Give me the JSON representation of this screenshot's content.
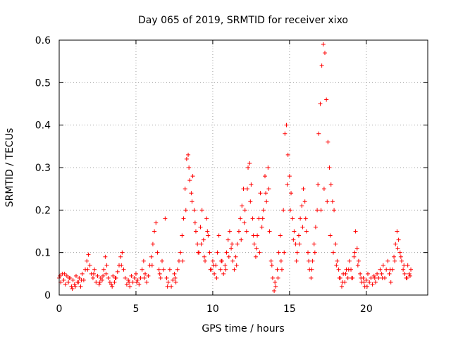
{
  "chart_data": {
    "type": "scatter",
    "title": "Day 065 of 2019, SRMTID for receiver xixo",
    "xlabel": "GPS time / hours",
    "ylabel": "SRMTID / TECUs",
    "xlim": [
      0,
      24
    ],
    "ylim": [
      0,
      0.6
    ],
    "x_ticks": [
      0,
      5,
      10,
      15,
      20
    ],
    "y_ticks": [
      0,
      0.1,
      0.2,
      0.3,
      0.4,
      0.5,
      0.6
    ],
    "x_tick_labels": [
      "0",
      "5",
      "10",
      "15",
      "20"
    ],
    "y_tick_labels": [
      "0",
      "0.1",
      "0.2",
      "0.3",
      "0.4",
      "0.5",
      "0.6"
    ],
    "grid": true,
    "marker": "+",
    "series": [
      {
        "name": "SRMTID",
        "color": "#ff0000",
        "points": [
          [
            0.0,
            0.04
          ],
          [
            0.1,
            0.03
          ],
          [
            0.2,
            0.05
          ],
          [
            0.3,
            0.035
          ],
          [
            0.4,
            0.025
          ],
          [
            0.5,
            0.045
          ],
          [
            0.6,
            0.03
          ],
          [
            0.7,
            0.04
          ],
          [
            0.8,
            0.02
          ],
          [
            0.9,
            0.035
          ],
          [
            1.0,
            0.025
          ],
          [
            1.1,
            0.045
          ],
          [
            1.2,
            0.03
          ],
          [
            1.3,
            0.04
          ],
          [
            1.4,
            0.02
          ],
          [
            1.5,
            0.05
          ],
          [
            1.6,
            0.035
          ],
          [
            1.7,
            0.06
          ],
          [
            1.8,
            0.08
          ],
          [
            1.9,
            0.095
          ],
          [
            2.0,
            0.07
          ],
          [
            2.1,
            0.05
          ],
          [
            2.2,
            0.04
          ],
          [
            2.3,
            0.06
          ],
          [
            2.4,
            0.03
          ],
          [
            2.5,
            0.045
          ],
          [
            2.6,
            0.025
          ],
          [
            2.7,
            0.04
          ],
          [
            2.8,
            0.035
          ],
          [
            2.9,
            0.06
          ],
          [
            3.0,
            0.09
          ],
          [
            3.1,
            0.07
          ],
          [
            3.2,
            0.04
          ],
          [
            3.3,
            0.03
          ],
          [
            3.4,
            0.025
          ],
          [
            3.5,
            0.045
          ],
          [
            3.6,
            0.03
          ],
          [
            3.7,
            0.04
          ],
          [
            3.8,
            0.055
          ],
          [
            3.9,
            0.07
          ],
          [
            4.0,
            0.09
          ],
          [
            4.1,
            0.1
          ],
          [
            4.2,
            0.06
          ],
          [
            4.3,
            0.04
          ],
          [
            4.4,
            0.025
          ],
          [
            4.5,
            0.035
          ],
          [
            4.6,
            0.02
          ],
          [
            4.7,
            0.045
          ],
          [
            4.8,
            0.03
          ],
          [
            4.9,
            0.04
          ],
          [
            5.0,
            0.05
          ],
          [
            5.1,
            0.035
          ],
          [
            5.2,
            0.025
          ],
          [
            5.3,
            0.04
          ],
          [
            5.4,
            0.06
          ],
          [
            5.5,
            0.08
          ],
          [
            5.6,
            0.05
          ],
          [
            5.7,
            0.03
          ],
          [
            5.8,
            0.045
          ],
          [
            5.9,
            0.07
          ],
          [
            6.0,
            0.09
          ],
          [
            6.1,
            0.12
          ],
          [
            6.2,
            0.15
          ],
          [
            6.3,
            0.17
          ],
          [
            6.4,
            0.1
          ],
          [
            6.5,
            0.06
          ],
          [
            6.6,
            0.04
          ],
          [
            6.7,
            0.08
          ],
          [
            6.8,
            0.06
          ],
          [
            6.9,
            0.18
          ],
          [
            7.0,
            0.04
          ],
          [
            7.1,
            0.03
          ],
          [
            7.2,
            0.06
          ],
          [
            7.3,
            0.02
          ],
          [
            7.4,
            0.035
          ],
          [
            7.5,
            0.05
          ],
          [
            7.6,
            0.03
          ],
          [
            7.7,
            0.06
          ],
          [
            7.8,
            0.08
          ],
          [
            7.9,
            0.1
          ],
          [
            8.0,
            0.14
          ],
          [
            8.1,
            0.18
          ],
          [
            8.2,
            0.25
          ],
          [
            8.3,
            0.32
          ],
          [
            8.4,
            0.33
          ],
          [
            8.5,
            0.27
          ],
          [
            8.6,
            0.24
          ],
          [
            8.7,
            0.28
          ],
          [
            8.8,
            0.2
          ],
          [
            8.9,
            0.15
          ],
          [
            9.0,
            0.12
          ],
          [
            9.1,
            0.1
          ],
          [
            9.2,
            0.16
          ],
          [
            9.3,
            0.2
          ],
          [
            9.4,
            0.13
          ],
          [
            9.5,
            0.08
          ],
          [
            9.6,
            0.18
          ],
          [
            9.7,
            0.14
          ],
          [
            9.8,
            0.1
          ],
          [
            9.9,
            0.06
          ],
          [
            10.0,
            0.08
          ],
          [
            10.1,
            0.05
          ],
          [
            10.2,
            0.07
          ],
          [
            10.3,
            0.1
          ],
          [
            10.4,
            0.14
          ],
          [
            10.5,
            0.06
          ],
          [
            10.6,
            0.08
          ],
          [
            10.7,
            0.05
          ],
          [
            10.8,
            0.07
          ],
          [
            10.9,
            0.1
          ],
          [
            11.0,
            0.13
          ],
          [
            11.1,
            0.15
          ],
          [
            11.2,
            0.11
          ],
          [
            11.3,
            0.08
          ],
          [
            11.4,
            0.06
          ],
          [
            11.5,
            0.09
          ],
          [
            11.6,
            0.12
          ],
          [
            11.7,
            0.15
          ],
          [
            11.8,
            0.18
          ],
          [
            11.9,
            0.21
          ],
          [
            12.0,
            0.25
          ],
          [
            12.1,
            0.2
          ],
          [
            12.2,
            0.15
          ],
          [
            12.3,
            0.3
          ],
          [
            12.4,
            0.31
          ],
          [
            12.5,
            0.26
          ],
          [
            12.6,
            0.18
          ],
          [
            12.7,
            0.12
          ],
          [
            12.8,
            0.09
          ],
          [
            12.9,
            0.14
          ],
          [
            13.0,
            0.18
          ],
          [
            13.1,
            0.24
          ],
          [
            13.2,
            0.16
          ],
          [
            13.3,
            0.2
          ],
          [
            13.4,
            0.28
          ],
          [
            13.5,
            0.22
          ],
          [
            13.6,
            0.3
          ],
          [
            13.7,
            0.15
          ],
          [
            13.8,
            0.08
          ],
          [
            13.9,
            0.04
          ],
          [
            14.0,
            0.01
          ],
          [
            14.1,
            0.02
          ],
          [
            14.2,
            0.06
          ],
          [
            14.3,
            0.1
          ],
          [
            14.4,
            0.14
          ],
          [
            14.5,
            0.06
          ],
          [
            14.6,
            0.2
          ],
          [
            14.7,
            0.38
          ],
          [
            14.8,
            0.4
          ],
          [
            14.9,
            0.33
          ],
          [
            15.0,
            0.28
          ],
          [
            15.1,
            0.24
          ],
          [
            15.2,
            0.18
          ],
          [
            15.3,
            0.15
          ],
          [
            15.4,
            0.12
          ],
          [
            15.5,
            0.1
          ],
          [
            15.6,
            0.14
          ],
          [
            15.7,
            0.18
          ],
          [
            15.8,
            0.21
          ],
          [
            15.9,
            0.25
          ],
          [
            16.0,
            0.22
          ],
          [
            16.1,
            0.15
          ],
          [
            16.2,
            0.1
          ],
          [
            16.3,
            0.06
          ],
          [
            16.4,
            0.04
          ],
          [
            16.5,
            0.08
          ],
          [
            16.6,
            0.12
          ],
          [
            16.7,
            0.16
          ],
          [
            16.8,
            0.2
          ],
          [
            16.9,
            0.38
          ],
          [
            17.0,
            0.45
          ],
          [
            17.1,
            0.54
          ],
          [
            17.2,
            0.59
          ],
          [
            17.3,
            0.57
          ],
          [
            17.4,
            0.46
          ],
          [
            17.5,
            0.36
          ],
          [
            17.6,
            0.3
          ],
          [
            17.7,
            0.26
          ],
          [
            17.8,
            0.22
          ],
          [
            17.9,
            0.2
          ],
          [
            18.0,
            0.12
          ],
          [
            18.1,
            0.08
          ],
          [
            18.2,
            0.06
          ],
          [
            18.3,
            0.04
          ],
          [
            18.4,
            0.02
          ],
          [
            18.5,
            0.05
          ],
          [
            18.6,
            0.03
          ],
          [
            18.7,
            0.06
          ],
          [
            18.8,
            0.04
          ],
          [
            18.9,
            0.08
          ],
          [
            19.0,
            0.06
          ],
          [
            19.1,
            0.04
          ],
          [
            19.2,
            0.09
          ],
          [
            19.3,
            0.15
          ],
          [
            19.4,
            0.11
          ],
          [
            19.5,
            0.08
          ],
          [
            19.6,
            0.05
          ],
          [
            19.7,
            0.03
          ],
          [
            19.8,
            0.04
          ],
          [
            19.9,
            0.02
          ],
          [
            20.0,
            0.035
          ],
          [
            20.1,
            0.05
          ],
          [
            20.2,
            0.03
          ],
          [
            20.3,
            0.04
          ],
          [
            20.4,
            0.025
          ],
          [
            20.5,
            0.045
          ],
          [
            20.6,
            0.03
          ],
          [
            20.7,
            0.05
          ],
          [
            20.8,
            0.04
          ],
          [
            20.9,
            0.06
          ],
          [
            21.0,
            0.05
          ],
          [
            21.1,
            0.07
          ],
          [
            21.2,
            0.04
          ],
          [
            21.3,
            0.06
          ],
          [
            21.4,
            0.08
          ],
          [
            21.5,
            0.05
          ],
          [
            21.6,
            0.03
          ],
          [
            21.7,
            0.06
          ],
          [
            21.8,
            0.09
          ],
          [
            21.9,
            0.12
          ],
          [
            22.0,
            0.15
          ],
          [
            22.1,
            0.13
          ],
          [
            22.2,
            0.1
          ],
          [
            22.3,
            0.08
          ],
          [
            22.4,
            0.06
          ],
          [
            22.5,
            0.05
          ],
          [
            22.6,
            0.04
          ],
          [
            22.7,
            0.07
          ],
          [
            22.8,
            0.05
          ],
          [
            22.9,
            0.06
          ],
          [
            0.05,
            0.045
          ],
          [
            0.35,
            0.05
          ],
          [
            0.65,
            0.04
          ],
          [
            1.05,
            0.02
          ],
          [
            1.25,
            0.03
          ],
          [
            1.85,
            0.06
          ],
          [
            2.25,
            0.05
          ],
          [
            2.65,
            0.03
          ],
          [
            3.05,
            0.05
          ],
          [
            3.45,
            0.02
          ],
          [
            4.05,
            0.07
          ],
          [
            4.55,
            0.03
          ],
          [
            5.05,
            0.03
          ],
          [
            5.55,
            0.04
          ],
          [
            6.05,
            0.07
          ],
          [
            6.55,
            0.05
          ],
          [
            7.05,
            0.02
          ],
          [
            7.55,
            0.04
          ],
          [
            8.05,
            0.08
          ],
          [
            8.25,
            0.2
          ],
          [
            8.45,
            0.3
          ],
          [
            8.65,
            0.22
          ],
          [
            8.85,
            0.17
          ],
          [
            9.05,
            0.1
          ],
          [
            9.25,
            0.12
          ],
          [
            9.45,
            0.09
          ],
          [
            9.65,
            0.15
          ],
          [
            9.85,
            0.06
          ],
          [
            10.05,
            0.07
          ],
          [
            10.25,
            0.04
          ],
          [
            10.55,
            0.08
          ],
          [
            10.85,
            0.06
          ],
          [
            11.05,
            0.09
          ],
          [
            11.25,
            0.12
          ],
          [
            11.55,
            0.07
          ],
          [
            11.85,
            0.13
          ],
          [
            12.05,
            0.17
          ],
          [
            12.25,
            0.25
          ],
          [
            12.45,
            0.22
          ],
          [
            12.65,
            0.14
          ],
          [
            12.85,
            0.11
          ],
          [
            13.05,
            0.1
          ],
          [
            13.25,
            0.18
          ],
          [
            13.45,
            0.24
          ],
          [
            13.65,
            0.25
          ],
          [
            13.85,
            0.07
          ],
          [
            14.05,
            0.03
          ],
          [
            14.25,
            0.04
          ],
          [
            14.45,
            0.08
          ],
          [
            14.65,
            0.1
          ],
          [
            14.85,
            0.26
          ],
          [
            15.05,
            0.2
          ],
          [
            15.25,
            0.13
          ],
          [
            15.45,
            0.08
          ],
          [
            15.65,
            0.12
          ],
          [
            15.85,
            0.16
          ],
          [
            16.05,
            0.18
          ],
          [
            16.25,
            0.08
          ],
          [
            16.45,
            0.06
          ],
          [
            16.65,
            0.1
          ],
          [
            16.85,
            0.26
          ],
          [
            17.05,
            0.2
          ],
          [
            17.25,
            0.25
          ],
          [
            17.45,
            0.22
          ],
          [
            17.65,
            0.14
          ],
          [
            17.85,
            0.1
          ],
          [
            18.05,
            0.07
          ],
          [
            18.25,
            0.04
          ],
          [
            18.45,
            0.03
          ],
          [
            18.65,
            0.05
          ],
          [
            18.85,
            0.06
          ],
          [
            19.05,
            0.04
          ],
          [
            19.25,
            0.1
          ],
          [
            19.45,
            0.07
          ],
          [
            19.65,
            0.04
          ],
          [
            19.85,
            0.03
          ],
          [
            20.05,
            0.02
          ],
          [
            20.55,
            0.04
          ],
          [
            21.05,
            0.04
          ],
          [
            21.55,
            0.06
          ],
          [
            21.85,
            0.08
          ],
          [
            22.05,
            0.11
          ],
          [
            22.25,
            0.09
          ],
          [
            22.45,
            0.07
          ],
          [
            22.65,
            0.04
          ],
          [
            22.85,
            0.045
          ],
          [
            0.85,
            0.015
          ],
          [
            1.45,
            0.035
          ],
          [
            2.85,
            0.045
          ],
          [
            3.65,
            0.04
          ]
        ]
      }
    ]
  }
}
